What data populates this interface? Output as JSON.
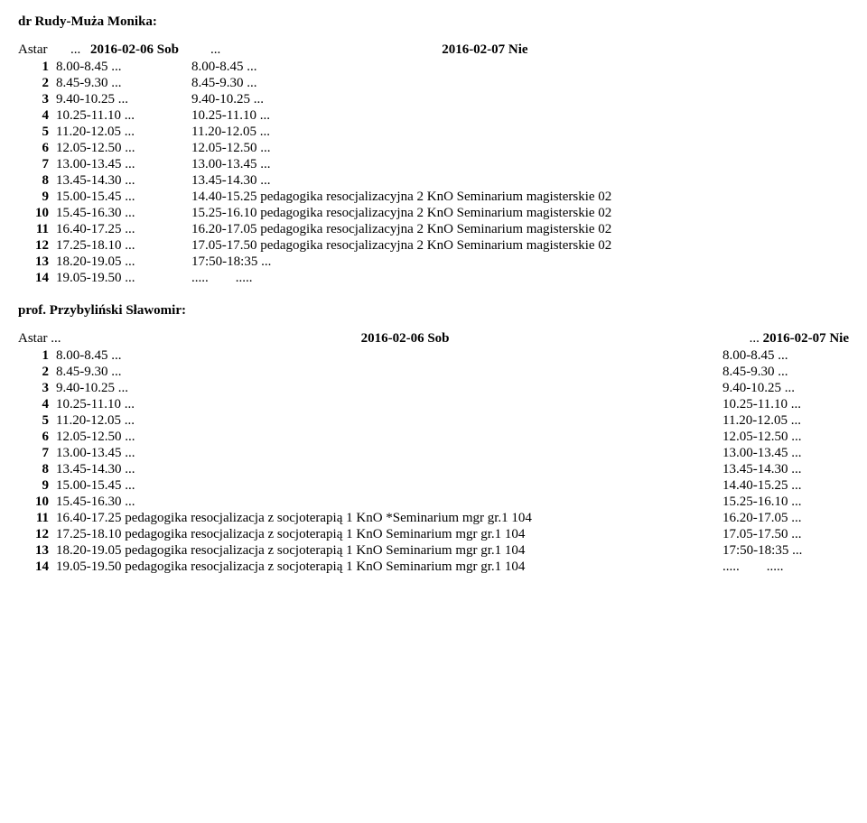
{
  "colors": {
    "background": "#ffffff",
    "text": "#000000"
  },
  "font": {
    "family": "Times New Roman",
    "size_pt": 11
  },
  "schedule1": {
    "title": "dr Rudy-Muża Monika:",
    "header": {
      "astar": "Astar",
      "dots": "...",
      "date1": "2016-02-06 Sob",
      "dots2": "...",
      "date2": "2016-02-07 Nie"
    },
    "rows": [
      {
        "idx": "1",
        "bold": true,
        "t1": "8.00-8.45 ...",
        "t2": "8.00-8.45 ..."
      },
      {
        "idx": "2",
        "bold": true,
        "t1": "8.45-9.30 ...",
        "t2": "8.45-9.30 ..."
      },
      {
        "idx": "3",
        "bold": true,
        "t1": "9.40-10.25 ...",
        "t2": "9.40-10.25 ..."
      },
      {
        "idx": "4",
        "bold": true,
        "t1": "10.25-11.10 ...",
        "t2": "10.25-11.10 ..."
      },
      {
        "idx": "5",
        "bold": true,
        "t1": "11.20-12.05 ...",
        "t2": "11.20-12.05 ..."
      },
      {
        "idx": "6",
        "bold": true,
        "t1": "12.05-12.50 ...",
        "t2": "12.05-12.50 ..."
      },
      {
        "idx": "7",
        "bold": true,
        "t1": "13.00-13.45 ...",
        "t2": "13.00-13.45 ..."
      },
      {
        "idx": "8",
        "bold": true,
        "t1": "13.45-14.30 ...",
        "t2": "13.45-14.30 ..."
      },
      {
        "idx": "9",
        "bold": true,
        "t1": "15.00-15.45 ...",
        "t2": "14.40-15.25 pedagogika resocjalizacyjna 2 KnO Seminarium magisterskie 02"
      },
      {
        "idx": "10",
        "bold": true,
        "t1": "15.45-16.30 ...",
        "t2": "15.25-16.10 pedagogika resocjalizacyjna 2 KnO Seminarium magisterskie 02"
      },
      {
        "idx": "11",
        "bold": true,
        "t1": "16.40-17.25 ...",
        "t2": "16.20-17.05 pedagogika resocjalizacyjna 2 KnO Seminarium magisterskie 02"
      },
      {
        "idx": "12",
        "bold": true,
        "t1": "17.25-18.10 ...",
        "t2": "17.05-17.50 pedagogika resocjalizacyjna 2 KnO Seminarium magisterskie 02"
      },
      {
        "idx": "13",
        "bold": true,
        "t1": "18.20-19.05 ...",
        "t2": "17:50-18:35 ..."
      },
      {
        "idx": "14",
        "bold": true,
        "t1": "19.05-19.50 ...",
        "t2": ".....        ....."
      }
    ]
  },
  "schedule2": {
    "title": "prof. Przybyliński Sławomir:",
    "header": {
      "left": "Astar    ...",
      "mid": "2016-02-06 Sob",
      "right": "...    2016-02-07 Nie"
    },
    "rows": [
      {
        "idx": "1",
        "bold": true,
        "left": "8.00-8.45 ...",
        "right": "8.00-8.45 ..."
      },
      {
        "idx": "2",
        "bold": true,
        "left": "8.45-9.30 ...",
        "right": "8.45-9.30 ..."
      },
      {
        "idx": "3",
        "bold": true,
        "left": "9.40-10.25 ...",
        "right": "9.40-10.25 ..."
      },
      {
        "idx": "4",
        "bold": true,
        "left": "10.25-11.10 ...",
        "right": "10.25-11.10 ..."
      },
      {
        "idx": "5",
        "bold": true,
        "left": "11.20-12.05 ...",
        "right": "11.20-12.05 ..."
      },
      {
        "idx": "6",
        "bold": true,
        "left": "12.05-12.50 ...",
        "right": "12.05-12.50 ..."
      },
      {
        "idx": "7",
        "bold": true,
        "left": "13.00-13.45 ...",
        "right": "13.00-13.45 ..."
      },
      {
        "idx": "8",
        "bold": true,
        "left": "13.45-14.30 ...",
        "right": "13.45-14.30 ..."
      },
      {
        "idx": "9",
        "bold": true,
        "left": "15.00-15.45 ...",
        "right": "14.40-15.25 ..."
      },
      {
        "idx": "10",
        "bold": true,
        "left": "15.45-16.30 ...",
        "right": "15.25-16.10 ..."
      },
      {
        "idx": "11",
        "bold": true,
        "left": "16.40-17.25 pedagogika resocjalizacja z socjoterapią 1 KnO *Seminarium mgr gr.1 104",
        "right": "16.20-17.05 ..."
      },
      {
        "idx": "12",
        "bold": true,
        "left": "17.25-18.10 pedagogika resocjalizacja z socjoterapią 1 KnO Seminarium mgr gr.1 104",
        "right": "17.05-17.50 ..."
      },
      {
        "idx": "13",
        "bold": true,
        "left": "18.20-19.05 pedagogika resocjalizacja z socjoterapią 1 KnO Seminarium mgr gr.1 104",
        "right": "17:50-18:35 ..."
      },
      {
        "idx": "14",
        "bold": true,
        "left": "19.05-19.50 pedagogika resocjalizacja z socjoterapią 1 KnO Seminarium mgr gr.1 104",
        "right": ".....        ....."
      }
    ]
  }
}
